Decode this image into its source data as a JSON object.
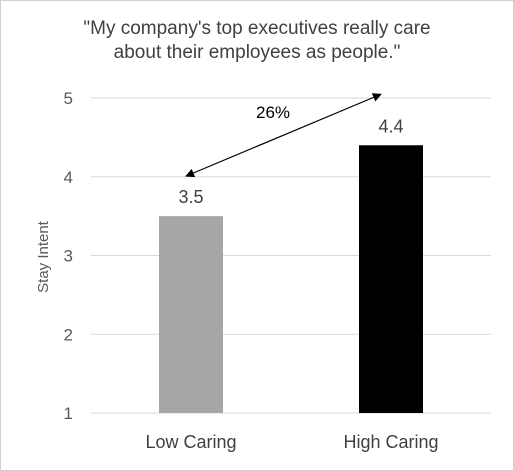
{
  "chart_data": {
    "type": "bar",
    "title_lines": [
      "\"My company's top executives really care",
      "about their employees as people.\""
    ],
    "categories": [
      "Low Caring",
      "High Caring"
    ],
    "values": [
      3.5,
      4.4
    ],
    "data_labels": [
      "3.5",
      "4.4"
    ],
    "colors": [
      "#a6a6a6",
      "#000000"
    ],
    "xlabel": "",
    "ylabel": "Stay Intent",
    "ylim": [
      1,
      5
    ],
    "yticks": [
      1,
      2,
      3,
      4,
      5
    ],
    "grid": true,
    "annotation": {
      "text": "26%",
      "from_category": 0,
      "to_category": 1,
      "style": "double-headed-arrow"
    }
  }
}
